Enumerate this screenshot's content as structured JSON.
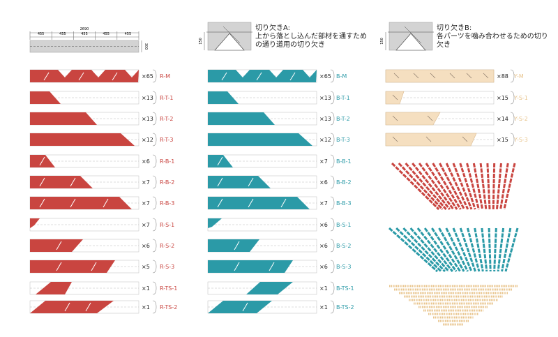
{
  "colors": {
    "red": "#c94540",
    "blue": "#2b9aa7",
    "cream": "#f5dfc0",
    "cream_stroke": "#d9b98f",
    "cream_text": "#e8c48c",
    "line": "#777777",
    "board": "#d3d3d3"
  },
  "header_dims": {
    "total": "2690",
    "segment": "455",
    "height": "300"
  },
  "notch_a": {
    "dim": "150",
    "lines": [
      "切り欠きA:",
      "上から落とし込んだ部材を通すため",
      "の通り道用の切り欠き"
    ]
  },
  "notch_b": {
    "dim": "150",
    "lines": [
      "切り欠きB:",
      "各パーツを噛み合わせるための切り",
      "欠き"
    ]
  },
  "red_parts": [
    {
      "label": "R-M",
      "count": "×65"
    },
    {
      "label": "R-T-1",
      "count": "×13"
    },
    {
      "label": "R-T-2",
      "count": "×13"
    },
    {
      "label": "R-T-3",
      "count": "×12"
    },
    {
      "label": "R-B-1",
      "count": "×6"
    },
    {
      "label": "R-B-2",
      "count": "×7"
    },
    {
      "label": "R-B-3",
      "count": "×7"
    },
    {
      "label": "R-S-1",
      "count": "×7"
    },
    {
      "label": "R-S-2",
      "count": "×6"
    },
    {
      "label": "R-S-3",
      "count": "×5"
    },
    {
      "label": "R-TS-1",
      "count": "×1"
    },
    {
      "label": "R-TS-2",
      "count": "×1"
    }
  ],
  "blue_parts": [
    {
      "label": "B-M",
      "count": "×65"
    },
    {
      "label": "B-T-1",
      "count": "×13"
    },
    {
      "label": "B-T-2",
      "count": "×13"
    },
    {
      "label": "B-T-3",
      "count": "×12"
    },
    {
      "label": "B-B-1",
      "count": "×7"
    },
    {
      "label": "B-B-2",
      "count": "×6"
    },
    {
      "label": "B-B-3",
      "count": "×7"
    },
    {
      "label": "B-S-1",
      "count": "×6"
    },
    {
      "label": "B-S-2",
      "count": "×6"
    },
    {
      "label": "B-S-3",
      "count": "×6"
    },
    {
      "label": "B-TS-1",
      "count": "×1"
    },
    {
      "label": "B-TS-2",
      "count": "×1"
    }
  ],
  "yellow_parts": [
    {
      "label": "Y-M",
      "count": "×88"
    },
    {
      "label": "Y-S-1",
      "count": "×15"
    },
    {
      "label": "Y-S-2",
      "count": "×14"
    },
    {
      "label": "Y-S-3",
      "count": "×15"
    }
  ]
}
